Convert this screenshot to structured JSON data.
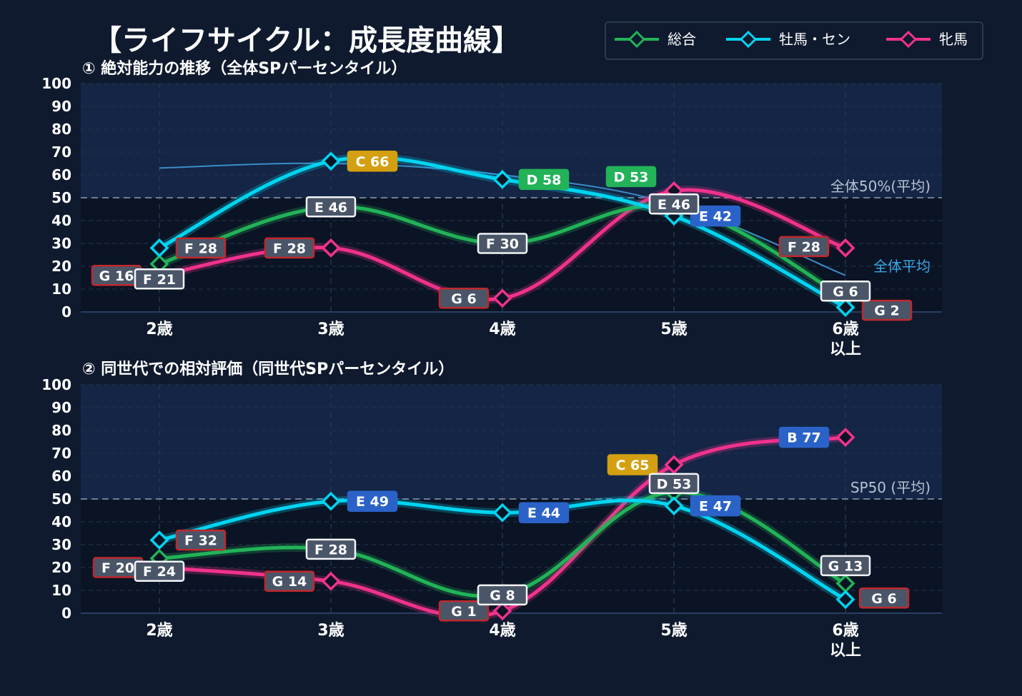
{
  "title": "【ライフサイクル：成長度曲線】",
  "colors": {
    "background": "#0f1a2e",
    "total": "#22b358",
    "male": "#00d4f0",
    "female": "#f0328c",
    "avg_line": "#3a8cc8",
    "grade_G": "#c0282d",
    "grade_F": "#c0282d",
    "grade_E": "#2a62c8",
    "grade_D": "#22b358",
    "grade_C": "#d4a010",
    "grade_B": "#2a62c8"
  },
  "legend": [
    {
      "name": "総合",
      "color": "#22b358"
    },
    {
      "name": "牡馬・セン",
      "color": "#00d4f0"
    },
    {
      "name": "牝馬",
      "color": "#f0328c"
    }
  ],
  "chart_data": [
    {
      "type": "line",
      "title": "① 絶対能力の推移（全体SPパーセンタイル）",
      "categories": [
        "2歳",
        "3歳",
        "4歳",
        "5歳",
        "6歳\n以上"
      ],
      "ylim": [
        0,
        100
      ],
      "yticks": [
        0,
        10,
        20,
        30,
        40,
        50,
        60,
        70,
        80,
        90,
        100
      ],
      "reference_line": {
        "value": 50,
        "label": "全体50%(平均)"
      },
      "average_curve": {
        "label": "全体平均",
        "values": [
          63,
          65,
          60,
          47,
          16
        ]
      },
      "series": [
        {
          "name": "総合",
          "values": [
            21,
            46,
            30,
            46,
            6
          ],
          "labels": [
            "F 21",
            "E 46",
            "F 30",
            "E 46",
            "G 6"
          ]
        },
        {
          "name": "牡馬・セン",
          "values": [
            28,
            66,
            58,
            42,
            2
          ],
          "labels": [
            "F 28",
            "C 66",
            "D 58",
            "E 42",
            "G 2"
          ]
        },
        {
          "name": "牝馬",
          "values": [
            16,
            28,
            6,
            53,
            28
          ],
          "labels": [
            "G 16",
            "F 28",
            "G 6",
            "D 53",
            "F 28"
          ]
        }
      ]
    },
    {
      "type": "line",
      "title": "② 同世代での相対評価（同世代SPパーセンタイル）",
      "categories": [
        "2歳",
        "3歳",
        "4歳",
        "5歳",
        "6歳\n以上"
      ],
      "ylim": [
        0,
        100
      ],
      "yticks": [
        0,
        10,
        20,
        30,
        40,
        50,
        60,
        70,
        80,
        90,
        100
      ],
      "reference_line": {
        "value": 50,
        "label": "SP50 (平均)"
      },
      "series": [
        {
          "name": "総合",
          "values": [
            24,
            28,
            8,
            53,
            13
          ],
          "labels": [
            "F 24",
            "F 28",
            "G 8",
            "D 53",
            "G 13"
          ]
        },
        {
          "name": "牡馬・セン",
          "values": [
            32,
            49,
            44,
            47,
            6
          ],
          "labels": [
            "F 32",
            "E 49",
            "E 44",
            "E 47",
            "G 6"
          ]
        },
        {
          "name": "牝馬",
          "values": [
            20,
            14,
            1,
            65,
            77
          ],
          "labels": [
            "F 20",
            "G 14",
            "G 1",
            "C 65",
            "B 77"
          ]
        }
      ]
    }
  ]
}
